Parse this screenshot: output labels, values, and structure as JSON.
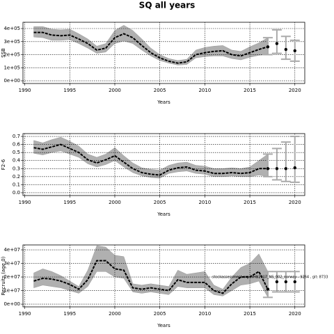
{
  "chart_data": [
    {
      "type": "line",
      "title": "SQ all years",
      "xlabel": "Years",
      "ylabel": "SSB",
      "x": [
        1991,
        1992,
        1993,
        1994,
        1995,
        1996,
        1997,
        1998,
        1999,
        2000,
        2001,
        2002,
        2003,
        2004,
        2005,
        2006,
        2007,
        2008,
        2009,
        2010,
        2011,
        2012,
        2013,
        2014,
        2015,
        2016,
        2017
      ],
      "values": [
        370000,
        370000,
        350000,
        345000,
        350000,
        320000,
        285000,
        235000,
        250000,
        330000,
        360000,
        330000,
        270000,
        215000,
        175000,
        150000,
        135000,
        145000,
        200000,
        215000,
        225000,
        230000,
        200000,
        190000,
        215000,
        240000,
        260000
      ],
      "lower": [
        335000,
        330000,
        310000,
        310000,
        315000,
        285000,
        250000,
        210000,
        220000,
        285000,
        305000,
        285000,
        235000,
        190000,
        155000,
        135000,
        120000,
        125000,
        175000,
        185000,
        190000,
        190000,
        170000,
        160000,
        180000,
        195000,
        200000
      ],
      "upper": [
        415000,
        415000,
        395000,
        390000,
        395000,
        360000,
        320000,
        265000,
        285000,
        385000,
        425000,
        385000,
        320000,
        250000,
        200000,
        170000,
        155000,
        165000,
        235000,
        255000,
        265000,
        270000,
        235000,
        225000,
        260000,
        290000,
        330000
      ],
      "forecast_x": [
        2017,
        2018,
        2019,
        2020
      ],
      "forecast_values": [
        260000,
        285000,
        240000,
        230000
      ],
      "forecast_lower": [
        200000,
        210000,
        165000,
        150000
      ],
      "forecast_upper": [
        330000,
        390000,
        340000,
        310000
      ],
      "xlim": [
        1989.8,
        2021.1
      ],
      "ylim": [
        -21000,
        448000
      ],
      "xticks": [
        1990,
        1995,
        2000,
        2005,
        2010,
        2015,
        2020
      ],
      "yticks": [
        {
          "value": 0,
          "label": "0e+00"
        },
        {
          "value": 100000,
          "label": "1e+05"
        },
        {
          "value": 200000,
          "label": "2e+05"
        },
        {
          "value": 300000,
          "label": "3e+05"
        },
        {
          "value": 400000,
          "label": "4e+05"
        }
      ],
      "grid": true
    },
    {
      "type": "line",
      "xlabel": "Years",
      "ylabel": "F2-6",
      "x": [
        1991,
        1992,
        1993,
        1994,
        1995,
        1996,
        1997,
        1998,
        1999,
        2000,
        2001,
        2002,
        2003,
        2004,
        2005,
        2006,
        2007,
        2008,
        2009,
        2010,
        2011,
        2012,
        2013,
        2014,
        2015,
        2016,
        2017
      ],
      "values": [
        0.56,
        0.54,
        0.57,
        0.6,
        0.55,
        0.5,
        0.41,
        0.37,
        0.41,
        0.46,
        0.38,
        0.3,
        0.25,
        0.23,
        0.22,
        0.28,
        0.31,
        0.32,
        0.28,
        0.27,
        0.24,
        0.24,
        0.25,
        0.24,
        0.25,
        0.3,
        0.3
      ],
      "lower": [
        0.49,
        0.47,
        0.5,
        0.52,
        0.48,
        0.44,
        0.36,
        0.32,
        0.35,
        0.4,
        0.32,
        0.25,
        0.21,
        0.19,
        0.18,
        0.24,
        0.26,
        0.27,
        0.24,
        0.23,
        0.2,
        0.2,
        0.21,
        0.2,
        0.2,
        0.22,
        0.2
      ],
      "upper": [
        0.65,
        0.62,
        0.66,
        0.69,
        0.64,
        0.58,
        0.48,
        0.44,
        0.48,
        0.56,
        0.46,
        0.37,
        0.31,
        0.29,
        0.28,
        0.34,
        0.37,
        0.38,
        0.34,
        0.33,
        0.3,
        0.3,
        0.31,
        0.3,
        0.32,
        0.4,
        0.48
      ],
      "forecast_x": [
        2017,
        2018,
        2019,
        2020
      ],
      "forecast_values": [
        0.3,
        0.3,
        0.3,
        0.31
      ],
      "forecast_lower": [
        0.2,
        0.16,
        0.14,
        0.13
      ],
      "forecast_upper": [
        0.48,
        0.55,
        0.63,
        0.7
      ],
      "xlim": [
        1989.8,
        2021.1
      ],
      "ylim": [
        -0.035,
        0.735
      ],
      "xticks": [
        1990,
        1995,
        2000,
        2005,
        2010,
        2015,
        2020
      ],
      "yticks": [
        {
          "value": 0,
          "label": "0.0"
        },
        0.1,
        0.2,
        0.3,
        0.4,
        0.5,
        0.6,
        0.7
      ],
      "grid": true
    },
    {
      "type": "line",
      "xlabel": "Years",
      "ylabel": "Recruits (age 0)",
      "annotation": "stockassessment.org WHB2017_NS_002_norway - 9264 , git: 8733",
      "x": [
        1991,
        1992,
        1993,
        1994,
        1995,
        1996,
        1997,
        1998,
        1999,
        2000,
        2001,
        2002,
        2003,
        2004,
        2005,
        2006,
        2007,
        2008,
        2009,
        2010,
        2011,
        2012,
        2013,
        2014,
        2015,
        2016,
        2017
      ],
      "values": [
        17000000,
        19000000,
        18500000,
        17000000,
        14500000,
        11000000,
        18000000,
        32000000,
        32000000,
        26000000,
        25000000,
        12000000,
        11000000,
        12000000,
        11000000,
        10000000,
        18000000,
        16000000,
        16000000,
        16000000,
        10000000,
        8000000,
        15000000,
        20000000,
        20000000,
        24000000,
        11000000
      ],
      "lower": [
        12000000,
        14000000,
        13000000,
        12000000,
        10000000,
        8000000,
        13000000,
        24000000,
        24000000,
        20000000,
        19000000,
        9000000,
        8000000,
        9000000,
        8000000,
        7000000,
        13000000,
        12000000,
        12000000,
        12000000,
        7000000,
        6000000,
        10000000,
        14000000,
        15000000,
        17000000,
        5000000
      ],
      "upper": [
        23000000,
        26000000,
        24000000,
        21000000,
        17000000,
        13000000,
        25000000,
        43000000,
        42000000,
        36000000,
        35000000,
        15000000,
        14000000,
        15000000,
        14000000,
        13000000,
        25000000,
        22000000,
        23000000,
        24000000,
        14000000,
        11000000,
        20000000,
        27000000,
        30000000,
        37000000,
        24000000
      ],
      "forecast_x": [
        2017,
        2018,
        2019,
        2020
      ],
      "forecast_values": [
        11000000,
        16500000,
        16500000,
        16500000
      ],
      "forecast_lower": [
        5000000,
        9000000,
        9000000,
        9000000
      ],
      "forecast_upper": [
        24000000,
        24000000,
        24000000,
        24000000
      ],
      "xlim": [
        1989.8,
        2021.1
      ],
      "ylim": [
        -2000000,
        43600000
      ],
      "xticks": [
        1990,
        1995,
        2000,
        2005,
        2010,
        2015,
        2020
      ],
      "yticks": [
        {
          "value": 0,
          "label": "0e+00"
        },
        {
          "value": 10000000,
          "label": "1e+07"
        },
        {
          "value": 20000000,
          "label": "2e+07"
        },
        {
          "value": 30000000,
          "label": "3e+07"
        },
        {
          "value": 40000000,
          "label": "4e+07"
        }
      ],
      "grid": true
    }
  ]
}
